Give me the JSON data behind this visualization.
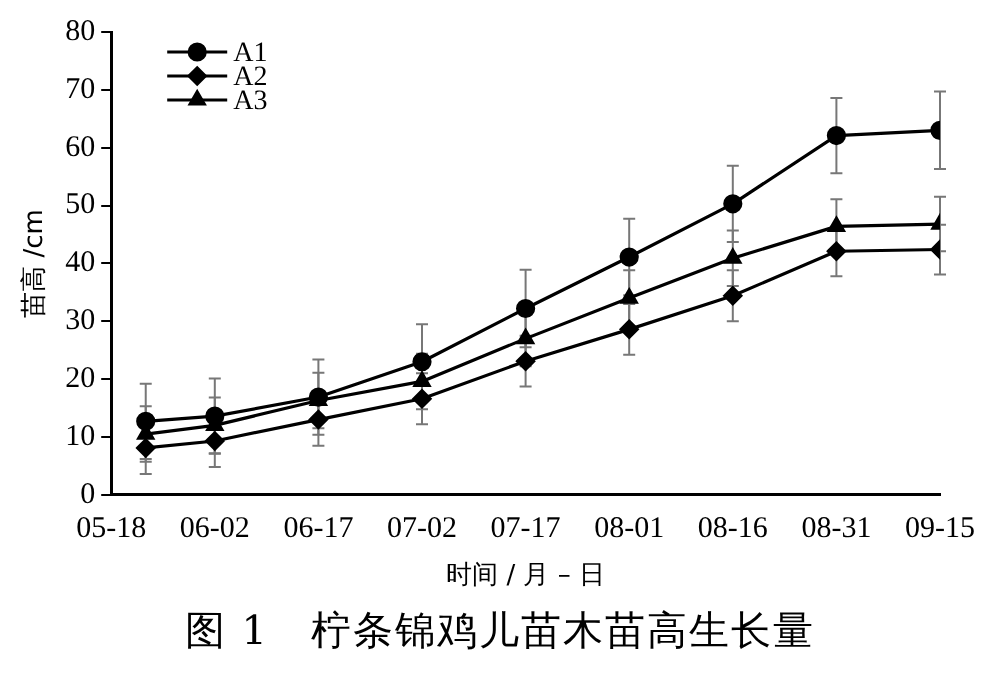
{
  "chart_data": {
    "type": "line",
    "xlabel": "时间 / 月 – 日",
    "ylabel": "苗高 /cm",
    "annotations": [
      "图 1　柠条锦鸡儿苗木苗高生长量"
    ],
    "x": [
      "--05-23",
      "--06-02",
      "--06-17",
      "--07-02",
      "--07-17",
      "--08-01",
      "--08-16",
      "--08-31",
      "--09-15"
    ],
    "xlim": [
      "--05-18",
      "--09-15"
    ],
    "xticks": [
      {
        "value": "--05-18",
        "label": "05-18"
      },
      {
        "value": "--06-02",
        "label": "06-02"
      },
      {
        "value": "--06-17",
        "label": "06-17"
      },
      {
        "value": "--07-02",
        "label": "07-02"
      },
      {
        "value": "--07-17",
        "label": "07-17"
      },
      {
        "value": "--08-01",
        "label": "08-01"
      },
      {
        "value": "--08-16",
        "label": "08-16"
      },
      {
        "value": "--08-31",
        "label": "08-31"
      },
      {
        "value": "--09-15",
        "label": "09-15"
      }
    ],
    "ylim": [
      0,
      80
    ],
    "yticks": [
      0,
      10,
      20,
      30,
      40,
      50,
      60,
      70,
      80
    ],
    "grid": false,
    "legend": "top left",
    "line_style": "solid",
    "series": [
      {
        "name": "A1",
        "color": "#000000",
        "marker": "circle",
        "values": [
          12.7,
          13.6,
          16.9,
          23,
          32.2,
          41.1,
          50.3,
          62.1,
          63
        ],
        "errors": [
          6.5,
          6.5,
          6.5,
          6.5,
          6.7,
          6.6,
          6.6,
          6.5,
          6.7
        ]
      },
      {
        "name": "A2",
        "color": "#000000",
        "marker": "diamond",
        "values": [
          8.1,
          9.3,
          13,
          16.6,
          23.1,
          28.6,
          34.4,
          42.1,
          42.4
        ],
        "errors": [
          4.5,
          4.5,
          4.5,
          4.4,
          4.4,
          4.4,
          4.4,
          4.3,
          4.3
        ]
      },
      {
        "name": "A3",
        "color": "#000000",
        "marker": "triangle",
        "values": [
          10.5,
          12,
          16.3,
          19.6,
          27,
          34,
          40.9,
          46.4,
          46.8
        ],
        "errors": [
          4.8,
          4.8,
          4.8,
          4.8,
          4.8,
          4.8,
          4.8,
          4.7,
          4.7
        ]
      }
    ]
  }
}
